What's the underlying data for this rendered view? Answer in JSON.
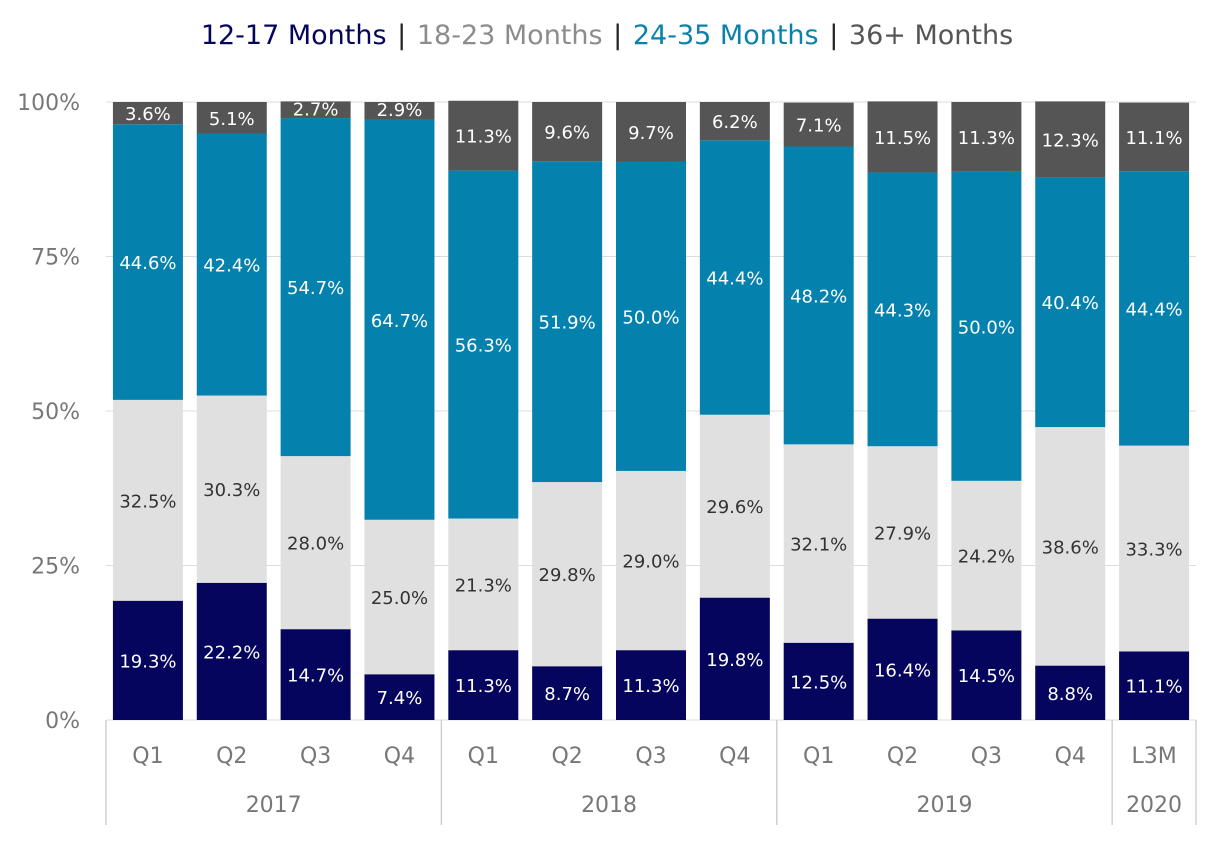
{
  "legend": {
    "items": [
      {
        "label": "12-17 Months",
        "color": "#05055e"
      },
      {
        "label": "18-23 Months",
        "color": "#8c8c8c"
      },
      {
        "label": "24-35 Months",
        "color": "#0a82ab"
      },
      {
        "label": "36+ Months",
        "color": "#555555"
      }
    ],
    "separator": "|"
  },
  "chart_data": {
    "type": "bar",
    "stacked": true,
    "title": "",
    "xlabel": "",
    "ylabel": "",
    "ylim": [
      0,
      100
    ],
    "y_ticks": [
      "0%",
      "25%",
      "50%",
      "75%",
      "100%"
    ],
    "categories": [
      "Q1",
      "Q2",
      "Q3",
      "Q4",
      "Q1",
      "Q2",
      "Q3",
      "Q4",
      "Q1",
      "Q2",
      "Q3",
      "Q4",
      "L3M"
    ],
    "groups": [
      {
        "label": "2017",
        "count": 4
      },
      {
        "label": "2018",
        "count": 4
      },
      {
        "label": "2019",
        "count": 4
      },
      {
        "label": "2020",
        "count": 1
      }
    ],
    "series": [
      {
        "name": "12-17 Months",
        "color": "#05055e",
        "label_color": "#ffffff",
        "values": [
          19.3,
          22.2,
          14.7,
          7.4,
          11.3,
          8.7,
          11.3,
          19.8,
          12.5,
          16.4,
          14.5,
          8.8,
          11.1
        ],
        "labels": [
          "19.3%",
          "22.2%",
          "14.7%",
          "7.4%",
          "11.3%",
          "8.7%",
          "11.3%",
          "19.8%",
          "12.5%",
          "16.4%",
          "14.5%",
          "8.8%",
          "11.1%"
        ]
      },
      {
        "name": "18-23 Months",
        "color": "#e0e0e0",
        "label_color": "#333333",
        "values": [
          32.5,
          30.3,
          28.0,
          25.0,
          21.3,
          29.8,
          29.0,
          29.6,
          32.1,
          27.9,
          24.2,
          38.6,
          33.3
        ],
        "labels": [
          "32.5%",
          "30.3%",
          "28.0%",
          "25.0%",
          "21.3%",
          "29.8%",
          "29.0%",
          "29.6%",
          "32.1%",
          "27.9%",
          "24.2%",
          "38.6%",
          "33.3%"
        ]
      },
      {
        "name": "24-35 Months",
        "color": "#0581ae",
        "label_color": "#ffffff",
        "values": [
          44.6,
          42.4,
          54.7,
          64.7,
          56.3,
          51.9,
          50.0,
          44.4,
          48.2,
          44.3,
          50.0,
          40.4,
          44.4
        ],
        "labels": [
          "44.6%",
          "42.4%",
          "54.7%",
          "64.7%",
          "56.3%",
          "51.9%",
          "50.0%",
          "44.4%",
          "48.2%",
          "44.3%",
          "50.0%",
          "40.4%",
          "44.4%"
        ]
      },
      {
        "name": "36+ Months",
        "color": "#555555",
        "label_color": "#ffffff",
        "values": [
          3.6,
          5.1,
          2.7,
          2.9,
          11.3,
          9.6,
          9.7,
          6.2,
          7.1,
          11.5,
          11.3,
          12.3,
          11.1
        ],
        "labels": [
          "3.6%",
          "5.1%",
          "2.7%",
          "2.9%",
          "11.3%",
          "9.6%",
          "9.7%",
          "6.2%",
          "7.1%",
          "11.5%",
          "11.3%",
          "12.3%",
          "11.1%"
        ]
      }
    ],
    "grid": true,
    "legend_position": "top"
  }
}
